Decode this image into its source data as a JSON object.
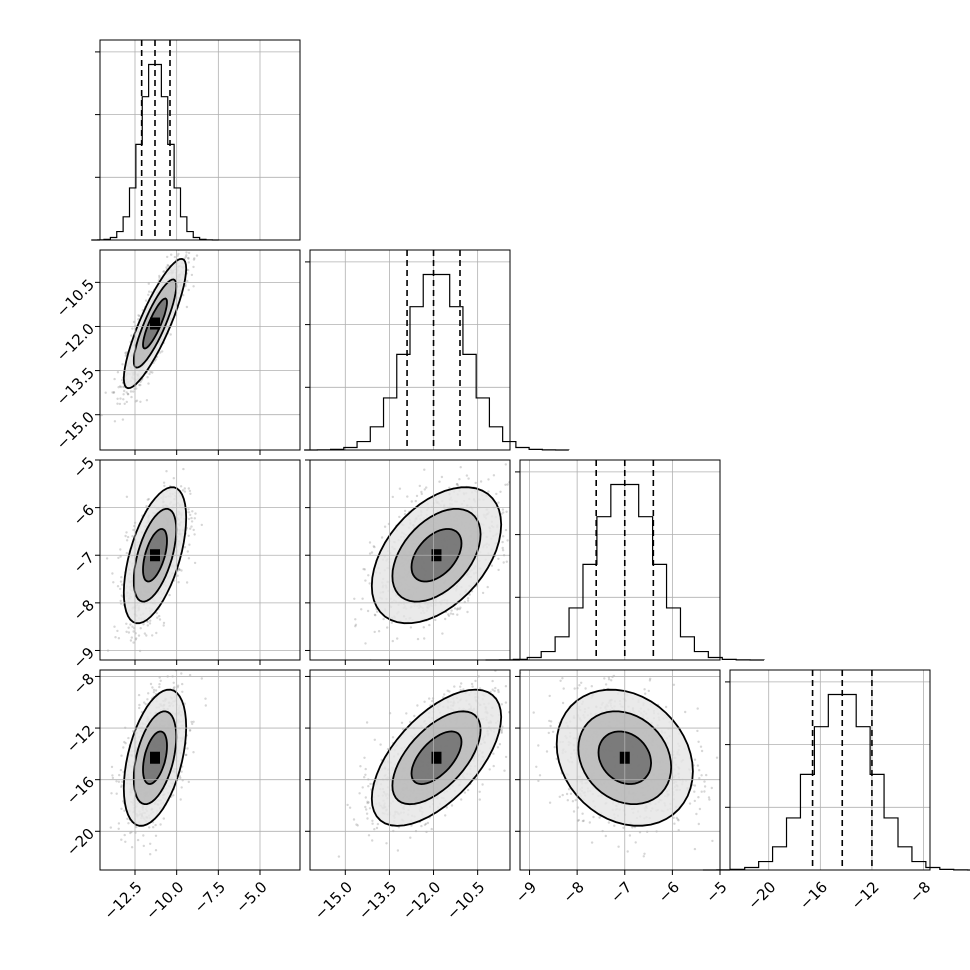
{
  "chart_data": {
    "type": "corner",
    "parameters": [
      {
        "range": [
          -14.6,
          -2.6
        ],
        "ticks": [
          -12.5,
          -10.0,
          -7.5,
          -5.0
        ],
        "tick_labels": [
          "−12.5",
          "−10.0",
          "−7.5",
          "−5.0"
        ],
        "mean": -11.3,
        "sd": 0.85,
        "quantiles": [
          -12.1,
          -11.3,
          -10.4
        ]
      },
      {
        "range": [
          -16.2,
          -9.4
        ],
        "ticks": [
          -15.0,
          -13.5,
          -12.0,
          -10.5
        ],
        "tick_labels": [
          "−15.0",
          "−13.5",
          "−12.0",
          "−10.5"
        ],
        "mean": -11.9,
        "sd": 1.0,
        "quantiles": [
          -12.9,
          -12.0,
          -11.1
        ]
      },
      {
        "range": [
          -9.2,
          -5.0
        ],
        "ticks": [
          -9,
          -8,
          -7,
          -6,
          -5
        ],
        "tick_labels": [
          "−9",
          "−8",
          "−7",
          "−6",
          "−5"
        ],
        "mean": -7.0,
        "sd": 0.65,
        "quantiles": [
          -7.6,
          -7.0,
          -6.4
        ]
      },
      {
        "range": [
          -23.0,
          -7.5
        ],
        "ticks": [
          -20,
          -16,
          -12,
          -8
        ],
        "tick_labels": [
          "−20",
          "−16",
          "−12",
          "−8"
        ],
        "mean": -14.3,
        "sd": 2.4,
        "quantiles": [
          -16.6,
          -14.3,
          -12.0
        ]
      }
    ],
    "correlations": {
      "1-0": 0.85,
      "2-0": 0.55,
      "2-1": 0.45,
      "3-0": 0.45,
      "3-1": 0.6,
      "3-2": -0.2
    },
    "grid": true,
    "contour_levels": 3
  }
}
